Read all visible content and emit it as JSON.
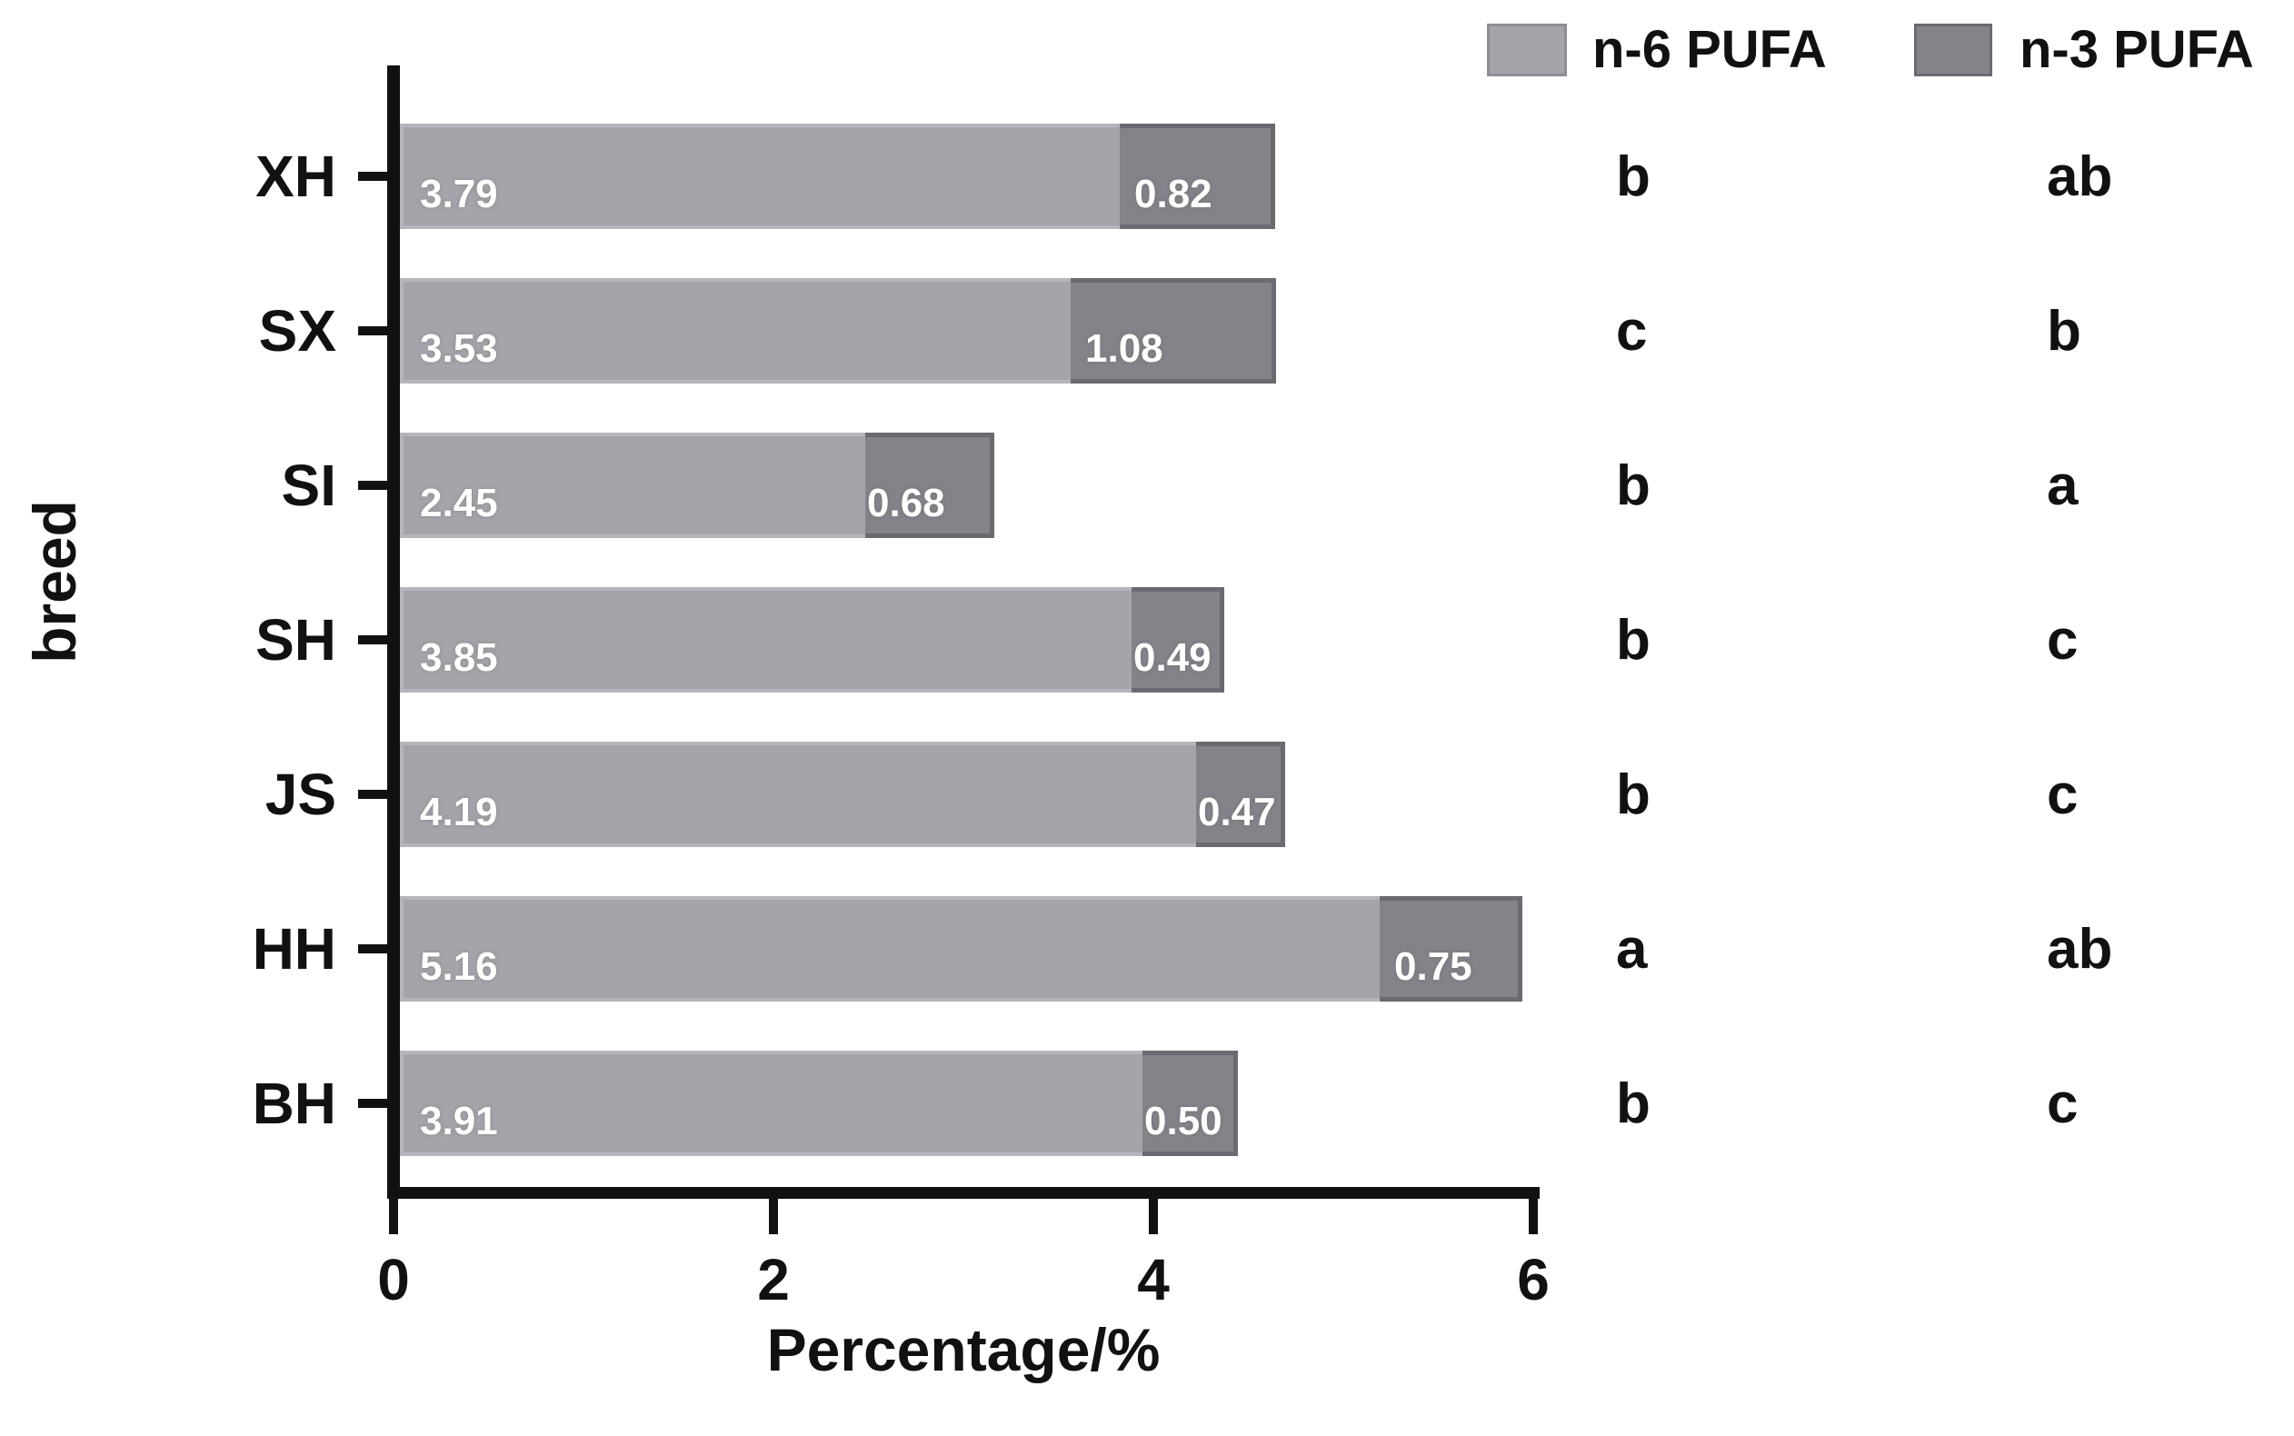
{
  "figure": {
    "xlabel": "Percentage/%",
    "ylabel": "breed"
  },
  "legend": {
    "items": [
      {
        "label": "n-6 PUFA",
        "color": "#a5a4aa",
        "border": "#8f8e95"
      },
      {
        "label": "n-3 PUFA",
        "color": "#84838a",
        "border": "#6b6a70"
      }
    ]
  },
  "chart_data": {
    "type": "bar",
    "orientation": "horizontal",
    "stacked": true,
    "title": "",
    "xlabel": "Percentage/%",
    "ylabel": "breed",
    "xlim": [
      0,
      6
    ],
    "x_ticks": [
      0,
      2,
      4,
      6
    ],
    "grid": false,
    "legend_position": "top-right",
    "categories": [
      "XH",
      "SX",
      "SI",
      "SH",
      "JS",
      "HH",
      "BH"
    ],
    "series": [
      {
        "name": "n-6 PUFA",
        "color": "#a5a4aa",
        "values": [
          3.79,
          3.53,
          2.45,
          3.85,
          4.19,
          5.16,
          3.91
        ]
      },
      {
        "name": "n-3 PUFA",
        "color": "#84838a",
        "values": [
          0.82,
          1.08,
          0.68,
          0.49,
          0.47,
          0.75,
          0.5
        ]
      }
    ],
    "significance_letters": {
      "n6_column": [
        "b",
        "c",
        "b",
        "b",
        "b",
        "a",
        "b"
      ],
      "n3_column": [
        "ab",
        "b",
        "a",
        "c",
        "c",
        "ab",
        "c"
      ]
    }
  }
}
